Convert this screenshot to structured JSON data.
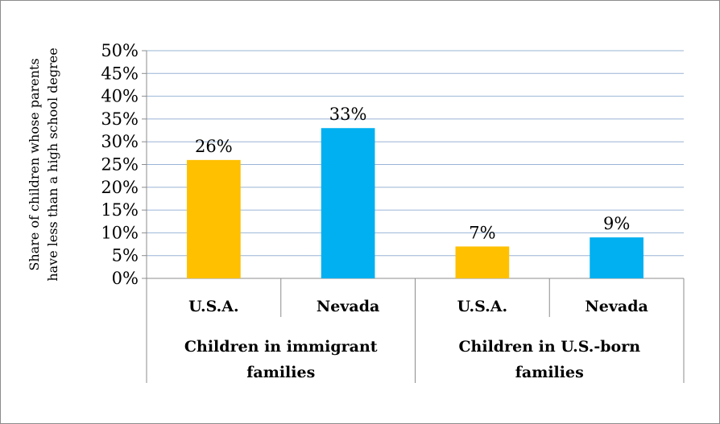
{
  "chart_data": {
    "type": "bar",
    "ylabel_lines": [
      "Share of children whose  parents",
      "have less than a high school degree"
    ],
    "ylim": [
      0,
      0.5
    ],
    "yticks": [
      "0%",
      "5%",
      "10%",
      "15%",
      "20%",
      "25%",
      "30%",
      "35%",
      "40%",
      "45%",
      "50%"
    ],
    "grid": true,
    "groups": [
      {
        "label_lines": [
          "Children in immigrant",
          "families"
        ],
        "bars": [
          {
            "category": "U.S.A.",
            "value": 0.26,
            "label": "26%",
            "color": "#FFC000"
          },
          {
            "category": "Nevada",
            "value": 0.33,
            "label": "33%",
            "color": "#00B0F0"
          }
        ]
      },
      {
        "label_lines": [
          "Children in U.S.-born",
          "families"
        ],
        "bars": [
          {
            "category": "U.S.A.",
            "value": 0.07,
            "label": "7%",
            "color": "#FFC000"
          },
          {
            "category": "Nevada",
            "value": 0.09,
            "label": "9%",
            "color": "#00B0F0"
          }
        ]
      }
    ]
  }
}
